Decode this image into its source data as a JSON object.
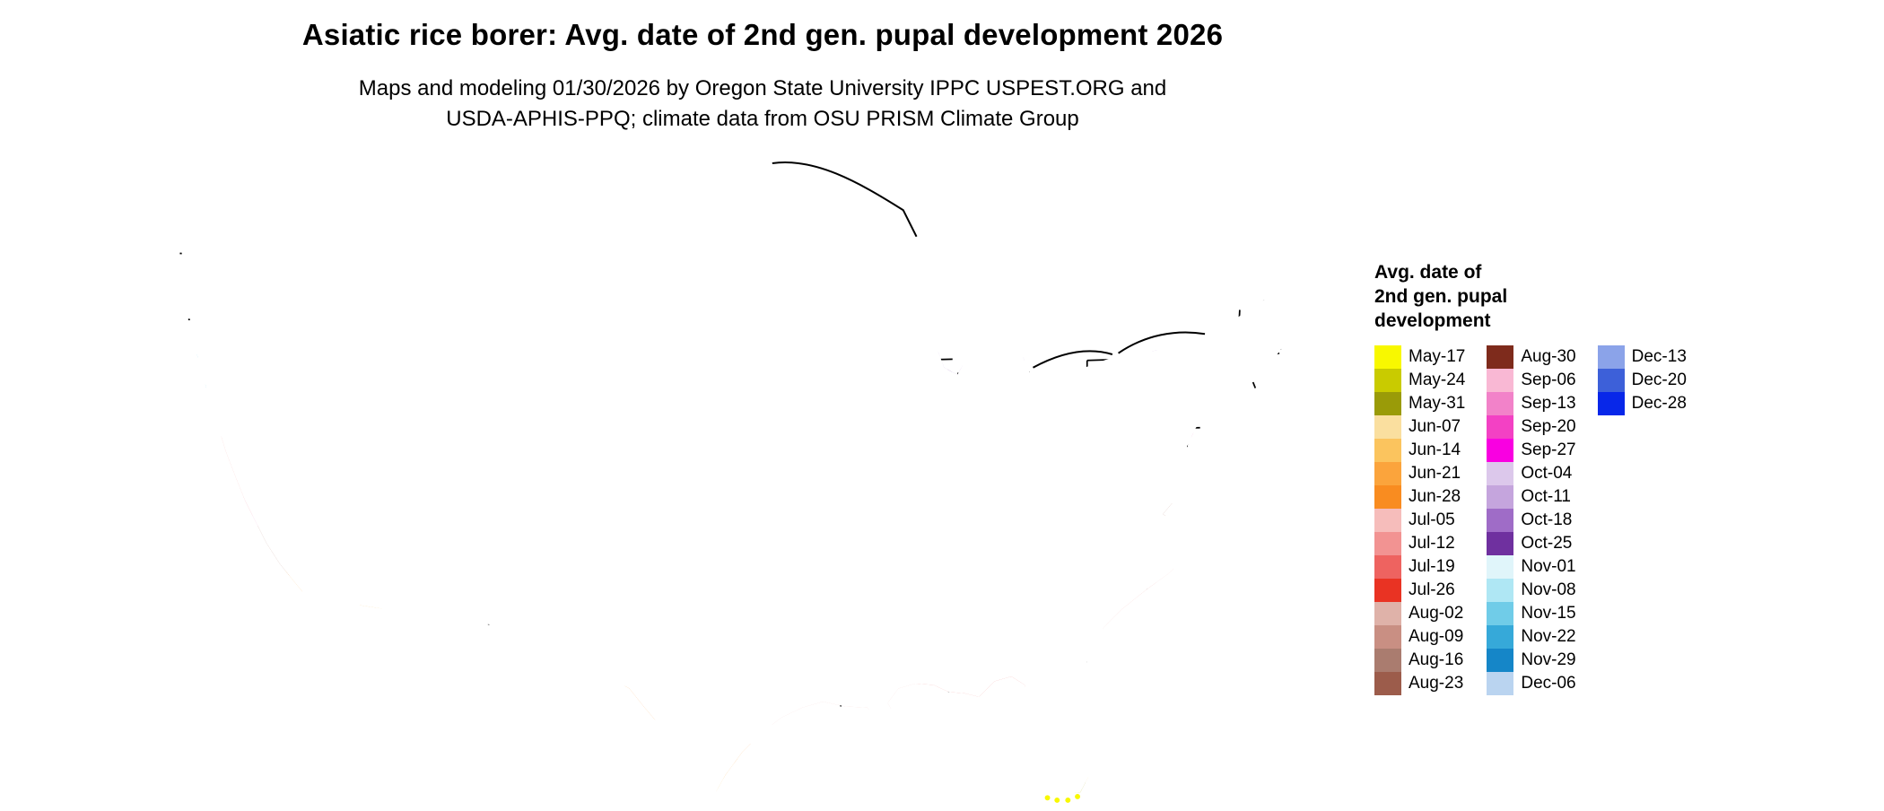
{
  "header": {
    "title": "Asiatic rice borer: Avg. date of 2nd gen. pupal development 2026",
    "subtitle_line1": "Maps and modeling 01/30/2026 by Oregon State University IPPC USPEST.ORG and",
    "subtitle_line2": "USDA-APHIS-PPQ; climate data from OSU PRISM Climate Group"
  },
  "legend": {
    "title_lines": [
      "Avg. date of",
      "2nd gen. pupal",
      "development"
    ],
    "columns": [
      [
        "May-17",
        "May-24",
        "May-31",
        "Jun-07",
        "Jun-14",
        "Jun-21",
        "Jun-28",
        "Jul-05",
        "Jul-12",
        "Jul-19",
        "Jul-26",
        "Aug-02",
        "Aug-09",
        "Aug-16",
        "Aug-23"
      ],
      [
        "Aug-30",
        "Sep-06",
        "Sep-13",
        "Sep-20",
        "Sep-27",
        "Oct-04",
        "Oct-11",
        "Oct-18",
        "Oct-25",
        "Nov-01",
        "Nov-08",
        "Nov-15",
        "Nov-22",
        "Nov-29",
        "Dec-06"
      ],
      [
        "Dec-13",
        "Dec-20",
        "Dec-28"
      ]
    ]
  },
  "palette": {
    "May-17": "#F8F800",
    "May-24": "#C9CB00",
    "May-31": "#9A9B08",
    "Jun-07": "#FADF9F",
    "Jun-14": "#FBC45E",
    "Jun-21": "#FBA43C",
    "Jun-28": "#F98C20",
    "Jul-05": "#F6BDBB",
    "Jul-12": "#F29392",
    "Jul-19": "#EE6360",
    "Jul-26": "#E93323",
    "Aug-02": "#DFB2A9",
    "Aug-09": "#C98F83",
    "Aug-16": "#AA7C6F",
    "Aug-23": "#9C5C4B",
    "Aug-30": "#7E2B1C",
    "Sep-06": "#F9B8D4",
    "Sep-13": "#F282C9",
    "Sep-20": "#F341C4",
    "Sep-27": "#F900E1",
    "Oct-04": "#DCC8EB",
    "Oct-11": "#C5A5DD",
    "Oct-18": "#9F6CC7",
    "Oct-25": "#6F309F",
    "Nov-01": "#E0F5FA",
    "Nov-08": "#AFE7F4",
    "Nov-15": "#70CCE8",
    "Nov-22": "#36A9D9",
    "Nov-29": "#1586C8",
    "Dec-06": "#BAD4F0",
    "Dec-13": "#8BA3E9",
    "Dec-20": "#3D60D9",
    "Dec-28": "#0827E9"
  }
}
